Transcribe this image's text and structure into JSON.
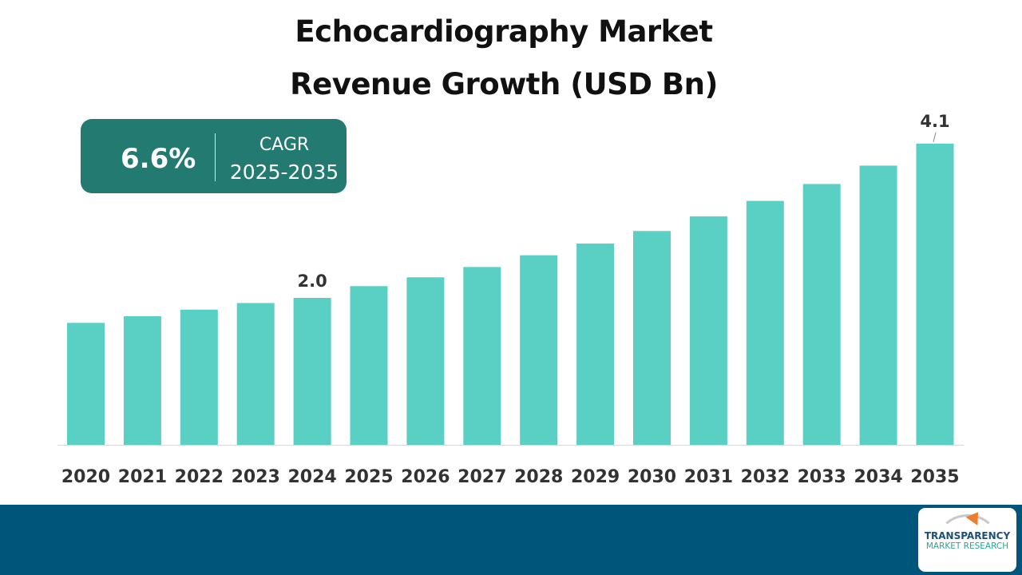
{
  "title_line1": "Echocardiography Market",
  "title_line2": "Revenue Growth (USD Bn)",
  "cagr": {
    "value": "6.6%",
    "label": "CAGR",
    "period": "2025-2035"
  },
  "logo": {
    "line1": "TRANSPARENCY",
    "line2": "MARKET RESEARCH"
  },
  "colors": {
    "bar": "#5ad0c4",
    "cagr_box": "#237a70",
    "footer": "#00557a"
  },
  "chart_data": {
    "type": "bar",
    "title": "Echocardiography Market Revenue Growth (USD Bn)",
    "xlabel": "",
    "ylabel": "USD Bn",
    "categories": [
      "2020",
      "2021",
      "2022",
      "2023",
      "2024",
      "2025",
      "2026",
      "2027",
      "2028",
      "2029",
      "2030",
      "2031",
      "2032",
      "2033",
      "2034",
      "2035"
    ],
    "values": [
      1.66,
      1.75,
      1.84,
      1.93,
      2.0,
      2.16,
      2.28,
      2.42,
      2.58,
      2.74,
      2.91,
      3.11,
      3.32,
      3.55,
      3.8,
      4.1
    ],
    "data_labels": {
      "2024": "2.0",
      "2035": "4.1"
    },
    "ylim": [
      0,
      4.1
    ],
    "grid": false
  }
}
